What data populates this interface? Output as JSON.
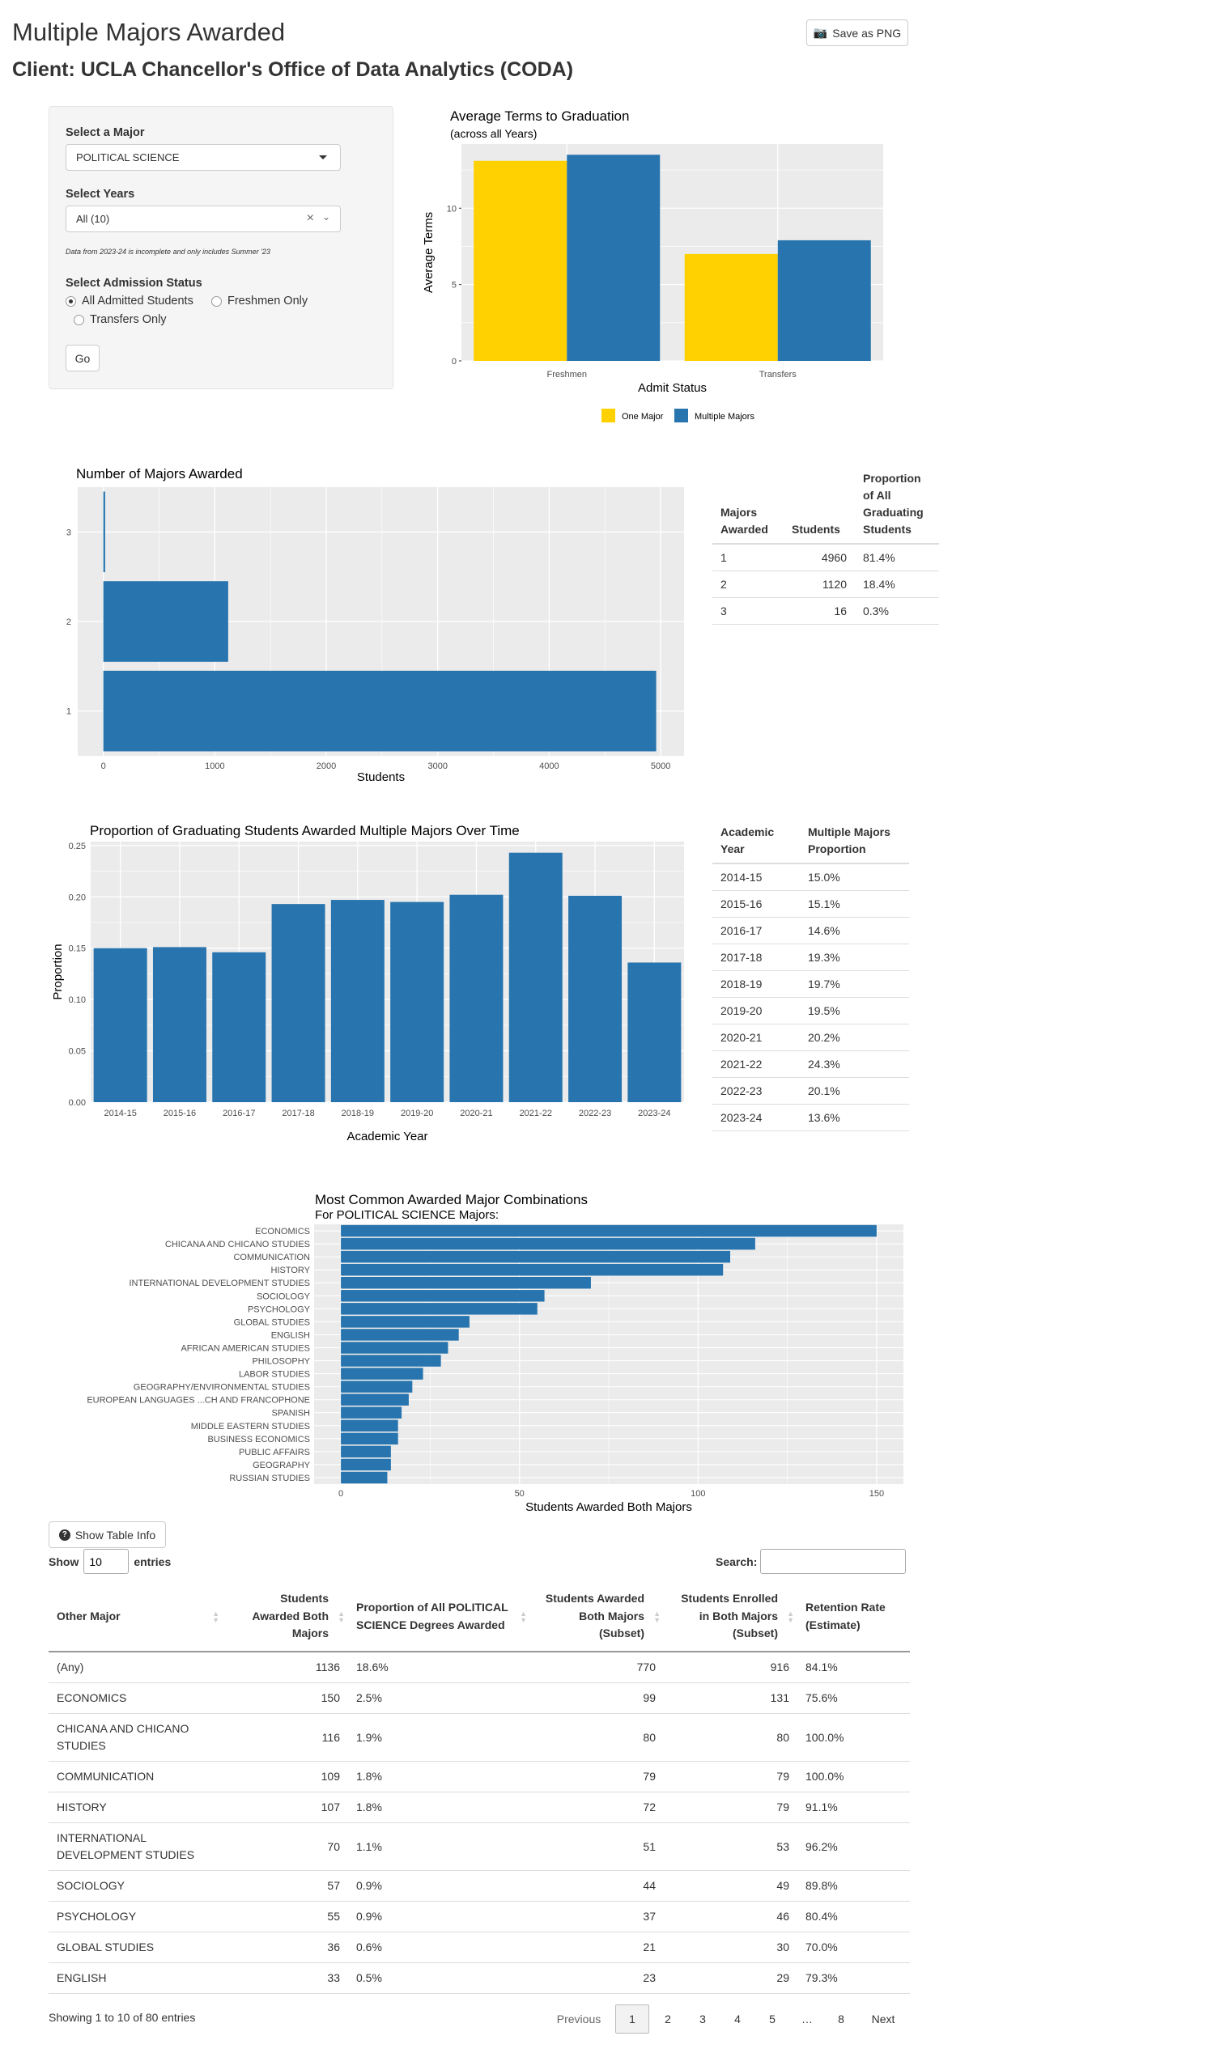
{
  "page": {
    "title": "Multiple Majors Awarded",
    "client": "Client: UCLA Chancellor's Office of Data Analytics (CODA)",
    "save_label": "Save as PNG"
  },
  "controls": {
    "major_label": "Select a Major",
    "major_value": "POLITICAL SCIENCE",
    "years_label": "Select Years",
    "years_value": "All (10)",
    "note": "Data from 2023-24 is incomplete and only includes Summer '23",
    "admission_label": "Select Admission Status",
    "admission_options": [
      "All Admitted Students",
      "Freshmen Only",
      "Transfers Only"
    ],
    "admission_selected": "All Admitted Students",
    "go_label": "Go"
  },
  "chart_data": [
    {
      "type": "bar",
      "title": "Average Terms to Graduation",
      "subtitle": "(across all Years)",
      "xlabel": "Admit Status",
      "ylabel": "Average Terms",
      "categories": [
        "Freshmen",
        "Transfers"
      ],
      "series": [
        {
          "name": "One Major",
          "values": [
            13.1,
            7.0
          ],
          "color": "#FFD100"
        },
        {
          "name": "Multiple Majors",
          "values": [
            13.5,
            7.9
          ],
          "color": "#2774AE"
        }
      ],
      "yticks": [
        0,
        5,
        10
      ],
      "ylim": [
        0,
        14.2
      ],
      "legend": "bottom"
    },
    {
      "type": "bar",
      "orientation": "horizontal",
      "title": "Number of Majors Awarded",
      "xlabel": "Students",
      "ylabel": "",
      "categories": [
        "1",
        "2",
        "3"
      ],
      "values": [
        4960,
        1120,
        16
      ],
      "xticks": [
        0,
        1000,
        2000,
        3000,
        4000,
        5000
      ],
      "xlim": [
        -230,
        5210
      ]
    },
    {
      "type": "bar",
      "title": "Proportion of Graduating Students Awarded Multiple Majors Over Time",
      "xlabel": "Academic Year",
      "ylabel": "Proportion",
      "categories": [
        "2014-15",
        "2015-16",
        "2016-17",
        "2017-18",
        "2018-19",
        "2019-20",
        "2020-21",
        "2021-22",
        "2022-23",
        "2023-24"
      ],
      "values": [
        0.15,
        0.151,
        0.146,
        0.193,
        0.197,
        0.195,
        0.202,
        0.243,
        0.201,
        0.136
      ],
      "yticks": [
        0.0,
        0.05,
        0.1,
        0.15,
        0.2,
        0.25
      ],
      "ylim": [
        0,
        0.25
      ]
    },
    {
      "type": "bar",
      "orientation": "horizontal",
      "title": "Most Common Awarded Major Combinations",
      "subtitle": "For POLITICAL SCIENCE Majors:",
      "xlabel": "Students Awarded Both Majors",
      "ylabel": "",
      "categories": [
        "ECONOMICS",
        "CHICANA AND CHICANO STUDIES",
        "COMMUNICATION",
        "HISTORY",
        "INTERNATIONAL DEVELOPMENT STUDIES",
        "SOCIOLOGY",
        "PSYCHOLOGY",
        "GLOBAL STUDIES",
        "ENGLISH",
        "AFRICAN AMERICAN STUDIES",
        "PHILOSOPHY",
        "LABOR STUDIES",
        "GEOGRAPHY/ENVIRONMENTAL STUDIES",
        "EUROPEAN LANGUAGES ...CH AND FRANCOPHONE",
        "SPANISH",
        "MIDDLE EASTERN STUDIES",
        "BUSINESS ECONOMICS",
        "PUBLIC AFFAIRS",
        "GEOGRAPHY",
        "RUSSIAN STUDIES"
      ],
      "values": [
        150,
        116,
        109,
        107,
        70,
        57,
        55,
        36,
        33,
        30,
        28,
        23,
        20,
        19,
        17,
        16,
        16,
        14,
        14,
        13
      ],
      "xticks": [
        0,
        50,
        100,
        150
      ],
      "xlim": [
        -7.5,
        157.5
      ]
    }
  ],
  "majors_table": {
    "headers": [
      "Majors Awarded",
      "Students",
      "Proportion of All Graduating Students"
    ],
    "rows": [
      [
        "1",
        "4960",
        "81.4%"
      ],
      [
        "2",
        "1120",
        "18.4%"
      ],
      [
        "3",
        "16",
        "0.3%"
      ]
    ]
  },
  "year_table": {
    "headers": [
      "Academic Year",
      "Multiple Majors Proportion"
    ],
    "rows": [
      [
        "2014-15",
        "15.0%"
      ],
      [
        "2015-16",
        "15.1%"
      ],
      [
        "2016-17",
        "14.6%"
      ],
      [
        "2017-18",
        "19.3%"
      ],
      [
        "2018-19",
        "19.7%"
      ],
      [
        "2019-20",
        "19.5%"
      ],
      [
        "2020-21",
        "20.2%"
      ],
      [
        "2021-22",
        "24.3%"
      ],
      [
        "2022-23",
        "20.1%"
      ],
      [
        "2023-24",
        "13.6%"
      ]
    ]
  },
  "combo_table": {
    "info_label": "Show Table Info",
    "show_label": "Show",
    "entries_value": "10",
    "entries_label": "entries",
    "search_label": "Search:",
    "headers": [
      "Other Major",
      "Students Awarded Both Majors",
      "Proportion of All POLITICAL SCIENCE Degrees Awarded",
      "Students Awarded Both Majors (Subset)",
      "Students Enrolled in Both Majors (Subset)",
      "Retention Rate (Estimate)"
    ],
    "rows": [
      [
        "(Any)",
        "1136",
        "18.6%",
        "770",
        "916",
        "84.1%"
      ],
      [
        "ECONOMICS",
        "150",
        "2.5%",
        "99",
        "131",
        "75.6%"
      ],
      [
        "CHICANA AND CHICANO STUDIES",
        "116",
        "1.9%",
        "80",
        "80",
        "100.0%"
      ],
      [
        "COMMUNICATION",
        "109",
        "1.8%",
        "79",
        "79",
        "100.0%"
      ],
      [
        "HISTORY",
        "107",
        "1.8%",
        "72",
        "79",
        "91.1%"
      ],
      [
        "INTERNATIONAL DEVELOPMENT STUDIES",
        "70",
        "1.1%",
        "51",
        "53",
        "96.2%"
      ],
      [
        "SOCIOLOGY",
        "57",
        "0.9%",
        "44",
        "49",
        "89.8%"
      ],
      [
        "PSYCHOLOGY",
        "55",
        "0.9%",
        "37",
        "46",
        "80.4%"
      ],
      [
        "GLOBAL STUDIES",
        "36",
        "0.6%",
        "21",
        "30",
        "70.0%"
      ],
      [
        "ENGLISH",
        "33",
        "0.5%",
        "23",
        "29",
        "79.3%"
      ]
    ],
    "footer": "Showing 1 to 10 of 80 entries",
    "pagination": {
      "previous": "Previous",
      "pages": [
        "1",
        "2",
        "3",
        "4",
        "5",
        "…",
        "8"
      ],
      "next": "Next",
      "current": "1"
    }
  }
}
